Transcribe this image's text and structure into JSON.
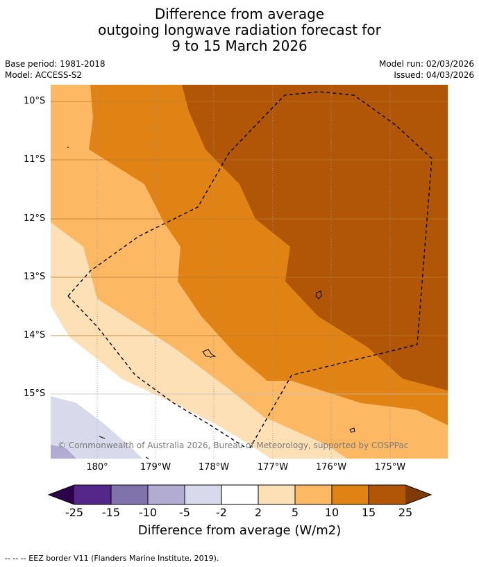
{
  "title": {
    "line1": "Difference from average",
    "line2": "outgoing longwave radiation forecast for",
    "line3": "9 to 15 March 2026"
  },
  "meta": {
    "base_period": "Base period: 1981-2018",
    "model": "Model: ACCESS-S2",
    "model_run": "Model run: 02/03/2026",
    "issued": "Issued: 04/03/2026"
  },
  "map": {
    "lat_labels": [
      "10°S",
      "11°S",
      "12°S",
      "13°S",
      "14°S",
      "15°S"
    ],
    "lon_labels": [
      "180°",
      "179°W",
      "178°W",
      "177°W",
      "176°W",
      "175°W"
    ],
    "copyright": "© Commonwealth of Australia 2026, Bureau of Meteorology, supported by COSPPac",
    "colors": {
      "band_15_25": "#b05606",
      "band_10_15": "#e08214",
      "band_5_10": "#fdb863",
      "band_2_5": "#fee0b6",
      "band_m2_2": "#ffffff",
      "band_m5_m2": "#d8daeb",
      "band_m10_m5": "#b2abd2",
      "band_m15_m10": "#8073ac",
      "band_m25_m15": "#542788",
      "extend_low": "#2d004b",
      "extend_high": "#7f3b08"
    }
  },
  "colorbar": {
    "ticks": [
      "-25",
      "-15",
      "-10",
      "-5",
      "-2",
      "2",
      "5",
      "10",
      "15",
      "25"
    ],
    "label": "Difference from average (W/m2)"
  },
  "footer": "--  --  -- EEZ border V11 (Flanders Marine Institute, 2019)."
}
